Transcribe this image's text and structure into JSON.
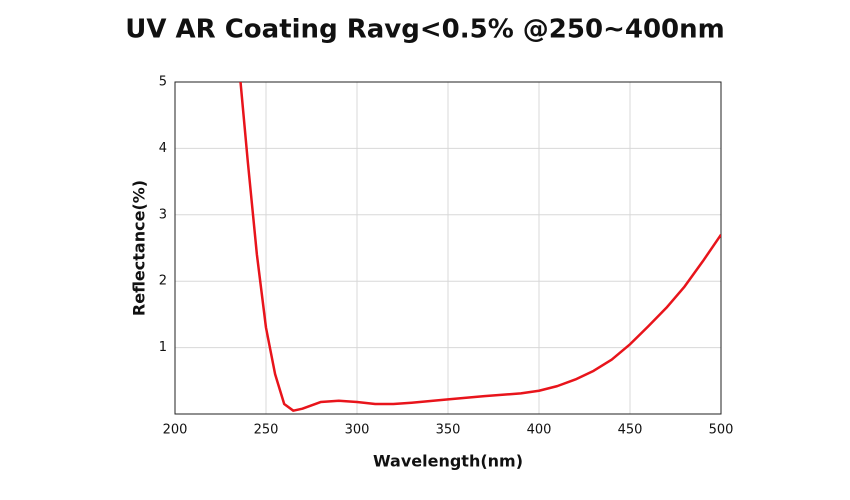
{
  "chart_data": {
    "type": "line",
    "title": "UV AR Coating Ravg<0.5% @250~400nm",
    "x_label": "Wavelength(nm)",
    "y_label": "Reflectance(%)",
    "xlim": [
      200,
      500
    ],
    "xticks": [
      200,
      250,
      300,
      350,
      400,
      450,
      500
    ],
    "ylim": [
      0,
      5
    ],
    "yticks": [
      1,
      2,
      3,
      4,
      5
    ],
    "grid": true,
    "x": [
      236,
      240,
      245,
      250,
      255,
      260,
      265,
      270,
      280,
      290,
      300,
      310,
      320,
      330,
      350,
      370,
      390,
      400,
      410,
      420,
      430,
      440,
      450,
      460,
      470,
      480,
      490,
      500
    ],
    "series": [
      {
        "name": "Reflectance",
        "color": "#e8141b",
        "values": [
          5,
          3.8,
          2.4,
          1.3,
          0.6,
          0.15,
          0.05,
          0.08,
          0.18,
          0.2,
          0.18,
          0.15,
          0.15,
          0.17,
          0.22,
          0.27,
          0.31,
          0.35,
          0.42,
          0.52,
          0.65,
          0.82,
          1.05,
          1.32,
          1.6,
          1.92,
          2.3,
          2.7
        ]
      }
    ]
  }
}
